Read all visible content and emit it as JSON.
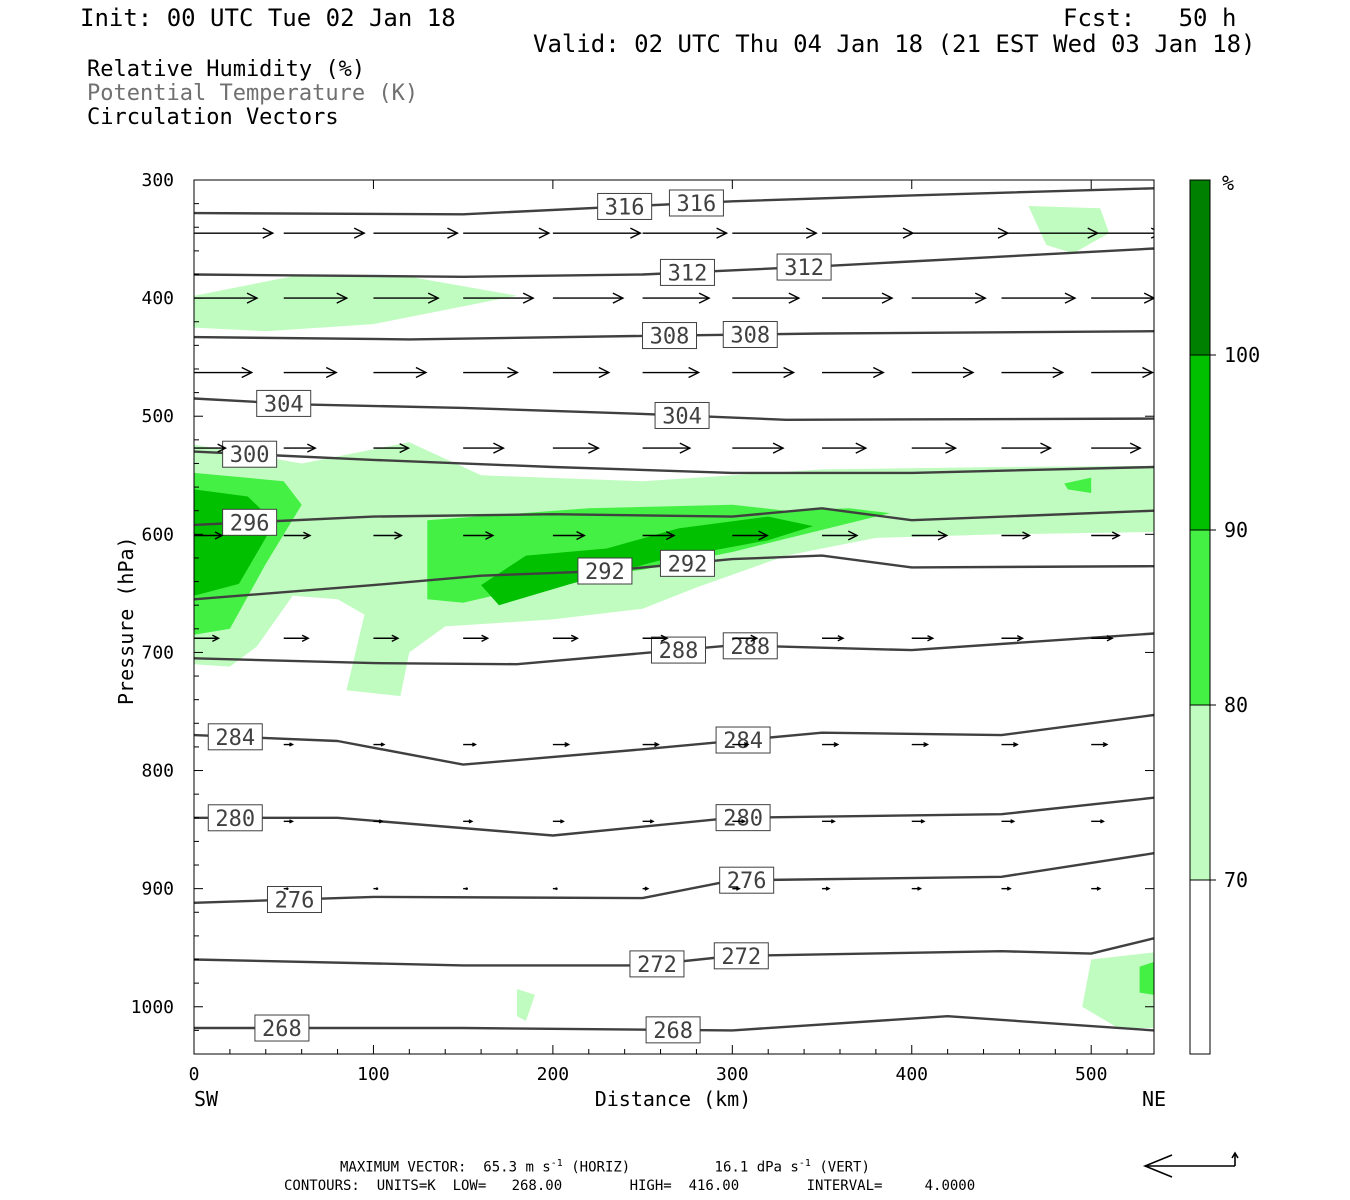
{
  "header": {
    "init": "Init: 00 UTC Tue 02 Jan 18",
    "fcst": "Fcst:   50 h",
    "valid": "Valid: 02 UTC Thu 04 Jan 18 (21 EST Wed 03 Jan 18)"
  },
  "legend_lines": {
    "rh": "Relative Humidity (%)",
    "theta": "Potential Temperature (K)",
    "vectors": "Circulation Vectors"
  },
  "footer": {
    "max_vector_label": "MAXIMUM VECTOR:",
    "max_horiz_value": "65.3",
    "max_horiz_units": "m s",
    "max_horiz_exp": "-1",
    "max_horiz_tag": "(HORIZ)",
    "max_vert_value": "16.1",
    "max_vert_units": "dPa s",
    "max_vert_exp": "-1",
    "max_vert_tag": "(VERT)",
    "contours_line": "CONTOURS:  UNITS=K  LOW=   268.00        HIGH=  416.00        INTERVAL=     4.0000"
  },
  "colors": {
    "rh70": "#c0fcc0",
    "rh80": "#44f044",
    "rh90": "#00c000",
    "rh100": "#008000",
    "theta_line": "#404040",
    "vector": "#000000"
  },
  "chart_data": {
    "type": "cross-section",
    "xlabel": "Distance (km)",
    "ylabel": "Pressure (hPa)",
    "x_ticks": [
      0,
      100,
      200,
      300,
      400,
      500
    ],
    "y_ticks": [
      300,
      400,
      500,
      600,
      700,
      800,
      900,
      1000
    ],
    "xlim": [
      0,
      535
    ],
    "ylim": [
      300,
      1040
    ],
    "x_endpoints": [
      "SW",
      "NE"
    ],
    "colorbar": {
      "unit": "%",
      "levels": [
        70,
        80,
        90,
        100
      ],
      "level_labels": [
        "70",
        "80",
        "90",
        "100"
      ]
    },
    "theta_contours": [
      {
        "value": 316,
        "labels": [
          "316",
          "316"
        ],
        "label_x_km": [
          240,
          280
        ],
        "points": [
          [
            0,
            328
          ],
          [
            150,
            329
          ],
          [
            300,
            318
          ],
          [
            400,
            313
          ],
          [
            535,
            307
          ]
        ]
      },
      {
        "value": 312,
        "labels": [
          "312",
          "312"
        ],
        "label_x_km": [
          275,
          340
        ],
        "points": [
          [
            0,
            380
          ],
          [
            150,
            382
          ],
          [
            250,
            380
          ],
          [
            350,
            373
          ],
          [
            535,
            358
          ]
        ]
      },
      {
        "value": 308,
        "labels": [
          "308",
          "308"
        ],
        "label_x_km": [
          265,
          310
        ],
        "points": [
          [
            0,
            433
          ],
          [
            120,
            435
          ],
          [
            250,
            432
          ],
          [
            350,
            430
          ],
          [
            535,
            428
          ]
        ]
      },
      {
        "value": 304,
        "labels": [
          "304",
          "304"
        ],
        "label_x_km": [
          50,
          272
        ],
        "points": [
          [
            0,
            485
          ],
          [
            60,
            490
          ],
          [
            150,
            493
          ],
          [
            250,
            498
          ],
          [
            330,
            503
          ],
          [
            535,
            502
          ]
        ]
      },
      {
        "value": 300,
        "labels": [
          "300"
        ],
        "label_x_km": [
          31
        ],
        "points": [
          [
            0,
            530
          ],
          [
            100,
            537
          ],
          [
            200,
            543
          ],
          [
            300,
            548
          ],
          [
            400,
            548
          ],
          [
            535,
            543
          ]
        ]
      },
      {
        "value": 296,
        "labels": [
          "296"
        ],
        "label_x_km": [
          31
        ],
        "points": [
          [
            0,
            592
          ],
          [
            100,
            585
          ],
          [
            200,
            583
          ],
          [
            300,
            585
          ],
          [
            350,
            578
          ],
          [
            400,
            588
          ],
          [
            535,
            580
          ]
        ]
      },
      {
        "value": 292,
        "labels": [
          "292",
          "292"
        ],
        "label_x_km": [
          229,
          275
        ],
        "points": [
          [
            0,
            655
          ],
          [
            100,
            643
          ],
          [
            160,
            635
          ],
          [
            230,
            631
          ],
          [
            300,
            621
          ],
          [
            350,
            618
          ],
          [
            400,
            628
          ],
          [
            535,
            627
          ]
        ]
      },
      {
        "value": 288,
        "labels": [
          "288",
          "288"
        ],
        "label_x_km": [
          270,
          310
        ],
        "points": [
          [
            0,
            705
          ],
          [
            100,
            709
          ],
          [
            180,
            710
          ],
          [
            300,
            694
          ],
          [
            400,
            698
          ],
          [
            535,
            684
          ]
        ]
      },
      {
        "value": 284,
        "labels": [
          "284",
          "284"
        ],
        "label_x_km": [
          23,
          306
        ],
        "points": [
          [
            0,
            770
          ],
          [
            80,
            775
          ],
          [
            150,
            795
          ],
          [
            250,
            782
          ],
          [
            350,
            768
          ],
          [
            450,
            770
          ],
          [
            535,
            753
          ]
        ]
      },
      {
        "value": 280,
        "labels": [
          "280",
          "280"
        ],
        "label_x_km": [
          23,
          306
        ],
        "points": [
          [
            0,
            840
          ],
          [
            80,
            840
          ],
          [
            200,
            855
          ],
          [
            300,
            840
          ],
          [
            450,
            837
          ],
          [
            535,
            823
          ]
        ]
      },
      {
        "value": 276,
        "labels": [
          "276",
          "276"
        ],
        "label_x_km": [
          56,
          308
        ],
        "points": [
          [
            0,
            912
          ],
          [
            100,
            907
          ],
          [
            250,
            908
          ],
          [
            300,
            893
          ],
          [
            450,
            890
          ],
          [
            535,
            870
          ]
        ]
      },
      {
        "value": 272,
        "labels": [
          "272",
          "272"
        ],
        "label_x_km": [
          258,
          305
        ],
        "points": [
          [
            0,
            960
          ],
          [
            150,
            965
          ],
          [
            250,
            965
          ],
          [
            300,
            957
          ],
          [
            450,
            953
          ],
          [
            500,
            955
          ],
          [
            535,
            942
          ]
        ]
      },
      {
        "value": 268,
        "labels": [
          "268",
          "268"
        ],
        "label_x_km": [
          49,
          267
        ],
        "points": [
          [
            0,
            1018
          ],
          [
            150,
            1018
          ],
          [
            300,
            1020
          ],
          [
            420,
            1008
          ],
          [
            535,
            1020
          ]
        ]
      }
    ],
    "rh_regions": [
      {
        "level": 70,
        "points": [
          [
            0,
            524
          ],
          [
            60,
            540
          ],
          [
            120,
            522
          ],
          [
            160,
            550
          ],
          [
            250,
            555
          ],
          [
            350,
            545
          ],
          [
            450,
            543
          ],
          [
            535,
            542
          ],
          [
            535,
            598
          ],
          [
            450,
            600
          ],
          [
            380,
            603
          ],
          [
            330,
            618
          ],
          [
            280,
            645
          ],
          [
            250,
            663
          ],
          [
            200,
            672
          ],
          [
            140,
            678
          ],
          [
            120,
            700
          ],
          [
            115,
            737
          ],
          [
            85,
            732
          ],
          [
            95,
            668
          ],
          [
            80,
            655
          ],
          [
            55,
            652
          ],
          [
            35,
            695
          ],
          [
            20,
            712
          ],
          [
            0,
            710
          ]
        ]
      },
      {
        "level": 70,
        "points": [
          [
            0,
            398
          ],
          [
            60,
            380
          ],
          [
            120,
            382
          ],
          [
            180,
            398
          ],
          [
            100,
            422
          ],
          [
            40,
            428
          ],
          [
            0,
            425
          ]
        ]
      },
      {
        "level": 70,
        "points": [
          [
            465,
            322
          ],
          [
            505,
            324
          ],
          [
            510,
            345
          ],
          [
            490,
            362
          ],
          [
            475,
            355
          ]
        ]
      },
      {
        "level": 70,
        "points": [
          [
            500,
            960
          ],
          [
            535,
            954
          ],
          [
            535,
            1018
          ],
          [
            515,
            1018
          ],
          [
            495,
            1000
          ]
        ]
      },
      {
        "level": 70,
        "points": [
          [
            180,
            985
          ],
          [
            190,
            990
          ],
          [
            185,
            1012
          ],
          [
            180,
            1008
          ]
        ]
      },
      {
        "level": 80,
        "points": [
          [
            0,
            548
          ],
          [
            50,
            555
          ],
          [
            60,
            575
          ],
          [
            40,
            625
          ],
          [
            20,
            680
          ],
          [
            0,
            685
          ]
        ]
      },
      {
        "level": 80,
        "points": [
          [
            130,
            588
          ],
          [
            220,
            578
          ],
          [
            300,
            575
          ],
          [
            330,
            580
          ],
          [
            365,
            578
          ],
          [
            388,
            582
          ],
          [
            300,
            615
          ],
          [
            250,
            630
          ],
          [
            200,
            640
          ],
          [
            150,
            658
          ],
          [
            130,
            655
          ]
        ]
      },
      {
        "level": 80,
        "points": [
          [
            485,
            557
          ],
          [
            500,
            552
          ],
          [
            500,
            565
          ],
          [
            487,
            562
          ]
        ]
      },
      {
        "level": 80,
        "points": [
          [
            527,
            966
          ],
          [
            535,
            962
          ],
          [
            535,
            990
          ],
          [
            527,
            988
          ]
        ]
      },
      {
        "level": 90,
        "points": [
          [
            0,
            562
          ],
          [
            30,
            568
          ],
          [
            45,
            590
          ],
          [
            25,
            642
          ],
          [
            0,
            652
          ]
        ]
      },
      {
        "level": 90,
        "points": [
          [
            160,
            643
          ],
          [
            185,
            618
          ],
          [
            230,
            612
          ],
          [
            270,
            595
          ],
          [
            320,
            585
          ],
          [
            345,
            593
          ],
          [
            320,
            605
          ],
          [
            260,
            622
          ],
          [
            210,
            642
          ],
          [
            170,
            660
          ]
        ]
      }
    ],
    "vector_rows": [
      {
        "p": 345,
        "x_km": [
          0,
          50,
          100,
          150,
          200,
          250,
          300,
          350,
          400,
          450,
          500
        ],
        "u": [
          45,
          46,
          48,
          49,
          50,
          48,
          48,
          52,
          55,
          55,
          40
        ],
        "w": [
          0,
          0,
          0,
          0,
          0,
          0,
          0,
          0,
          0,
          0,
          0
        ]
      },
      {
        "p": 400,
        "x_km": [
          0,
          50,
          100,
          150,
          200,
          250,
          300,
          350,
          400,
          450,
          500
        ],
        "u": [
          36,
          36,
          37,
          40,
          40,
          38,
          38,
          40,
          42,
          42,
          36
        ],
        "w": [
          0,
          0,
          0,
          0,
          0,
          0,
          0,
          0,
          0,
          0,
          0
        ]
      },
      {
        "p": 463,
        "x_km": [
          0,
          50,
          100,
          150,
          200,
          250,
          300,
          350,
          400,
          450,
          500
        ],
        "u": [
          33,
          30,
          30,
          31,
          32,
          32,
          35,
          35,
          35,
          35,
          35
        ],
        "w": [
          0,
          0,
          0,
          0,
          0,
          0,
          0,
          0,
          0,
          0,
          0
        ]
      },
      {
        "p": 527,
        "x_km": [
          0,
          50,
          100,
          150,
          200,
          250,
          300,
          350,
          400,
          450,
          500
        ],
        "u": [
          18,
          18,
          20,
          23,
          26,
          27,
          29,
          25,
          25,
          28,
          28
        ],
        "w": [
          0,
          0,
          0,
          0,
          0,
          0,
          0,
          0,
          0,
          0,
          0
        ]
      },
      {
        "p": 601,
        "x_km": [
          0,
          50,
          100,
          150,
          200,
          250,
          300,
          350,
          400,
          450,
          500
        ],
        "u": [
          16,
          15,
          16,
          17,
          18,
          18,
          20,
          20,
          20,
          16,
          16
        ],
        "w": [
          0,
          0,
          0,
          0,
          0,
          0,
          0,
          0,
          0,
          0,
          0
        ]
      },
      {
        "p": 688,
        "x_km": [
          0,
          50,
          100,
          150,
          200,
          250,
          300,
          350,
          400,
          450,
          500
        ],
        "u": [
          14,
          14,
          14,
          14,
          14,
          14,
          14,
          12,
          12,
          12,
          12
        ],
        "w": [
          0,
          0,
          0,
          0,
          0,
          0,
          0,
          0,
          0,
          0,
          0
        ]
      },
      {
        "p": 778,
        "x_km": [
          50,
          100,
          150,
          200,
          250,
          300,
          350,
          400,
          450,
          500
        ],
        "u": [
          5,
          6,
          7,
          9,
          9,
          9,
          9,
          9,
          9,
          9
        ],
        "w": [
          0,
          0,
          0,
          0,
          0,
          0,
          0,
          0,
          0,
          0
        ]
      },
      {
        "p": 843,
        "x_km": [
          50,
          100,
          150,
          200,
          250,
          300,
          350,
          400,
          450,
          500
        ],
        "u": [
          5,
          5,
          5,
          6,
          6,
          7,
          7,
          7,
          7,
          7
        ],
        "w": [
          0,
          0,
          0,
          0,
          0,
          0,
          0,
          0,
          0,
          0
        ]
      },
      {
        "p": 900,
        "x_km": [
          50,
          100,
          150,
          200,
          250,
          300,
          350,
          400,
          450,
          500
        ],
        "u": [
          2,
          2,
          2,
          2,
          3,
          4,
          4,
          5,
          5,
          5
        ],
        "w": [
          0,
          0,
          0,
          0,
          0,
          0,
          0,
          0,
          0,
          0
        ]
      }
    ]
  }
}
